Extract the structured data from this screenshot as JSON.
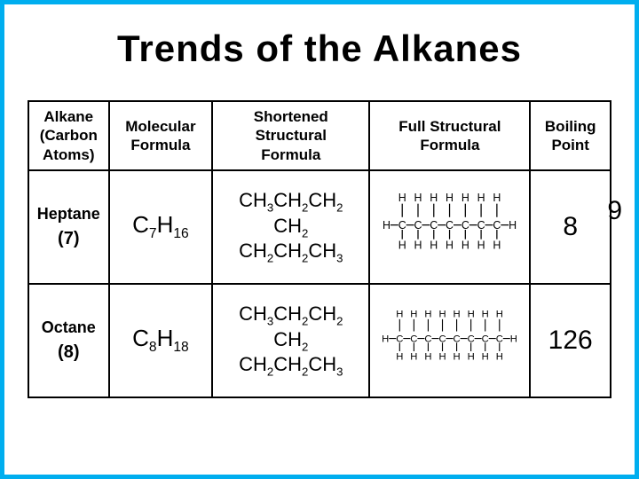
{
  "title": "Trends of the Alkanes",
  "headers": {
    "alkane": "Alkane\n(Carbon\nAtoms)",
    "molecular": "Molecular\nFormula",
    "shortened": "Shortened\nStructural\nFormula",
    "full": "Full Structural\nFormula",
    "boiling": "Boiling\nPoint"
  },
  "rows": [
    {
      "name": "Heptane",
      "carbons": "(7)",
      "molecular_base": "C",
      "molecular_c": "7",
      "molecular_h_base": "H",
      "molecular_h": "16",
      "shortened_lines": [
        "CH3CH2CH2",
        "CH2",
        "CH2CH2CH3"
      ],
      "boiling": "8",
      "boiling_edge": "9",
      "chain_len": 7
    },
    {
      "name": "Octane",
      "carbons": "(8)",
      "molecular_base": "C",
      "molecular_c": "8",
      "molecular_h_base": "H",
      "molecular_h": "18",
      "shortened_lines": [
        "CH3CH2CH2",
        "CH2",
        "CH2CH2CH3"
      ],
      "boiling": "126",
      "boiling_edge": "",
      "chain_len": 8
    }
  ],
  "colors": {
    "border": "#00aeef",
    "cell_border": "#000000",
    "text": "#000000",
    "background": "#ffffff"
  }
}
